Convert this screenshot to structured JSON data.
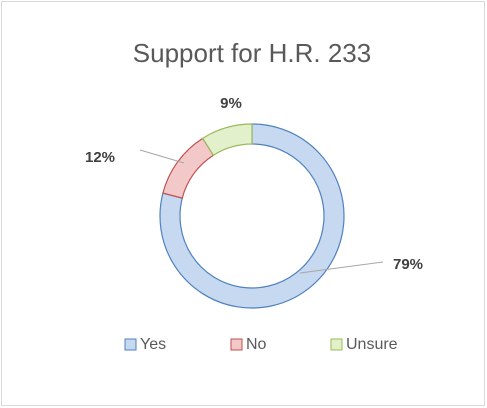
{
  "chart_data": {
    "type": "doughnut",
    "title": "Support for H.R. 233",
    "categories": [
      "Yes",
      "No",
      "Unsure"
    ],
    "values": [
      79,
      12,
      9
    ],
    "value_labels": [
      "79%",
      "12%",
      "9%"
    ],
    "colors": [
      "#c6d9f1",
      "#f2c9c8",
      "#e3f0cc"
    ],
    "edge_colors": [
      "#4f81bd",
      "#c0504d",
      "#9bbb59"
    ],
    "legend": "bottom"
  }
}
